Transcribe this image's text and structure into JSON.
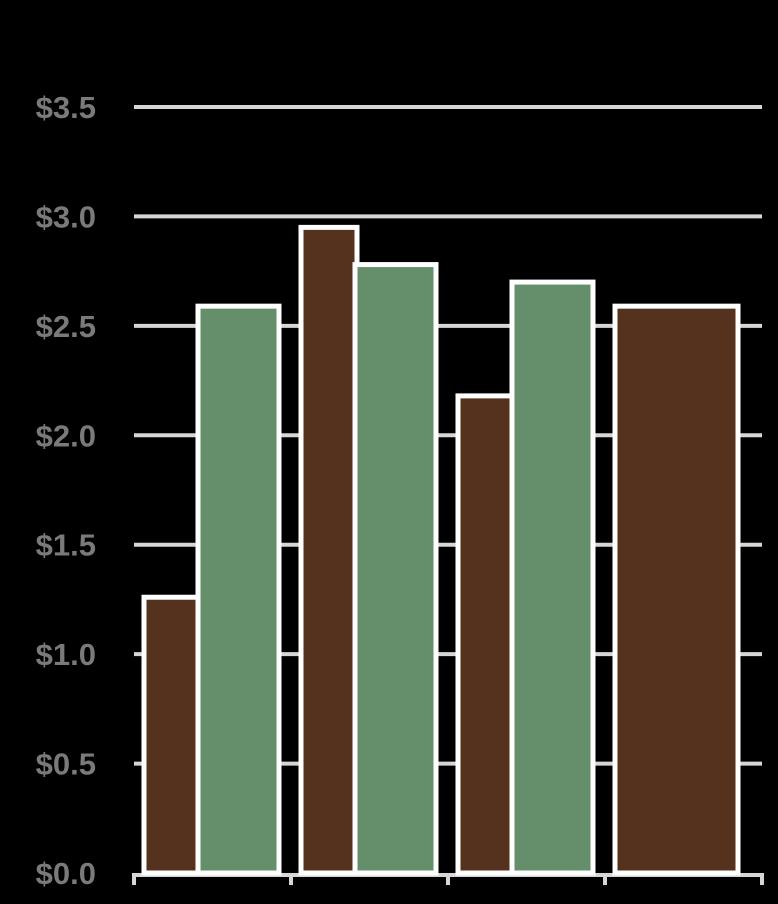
{
  "chart_data": {
    "type": "bar",
    "title": "",
    "xlabel": "",
    "ylabel": "",
    "ylim": [
      0,
      3.5
    ],
    "yticks": [
      "$0.0",
      "$0.5",
      "$1.0",
      "$1.5",
      "$2.0",
      "$2.5",
      "$3.0",
      "$3.5"
    ],
    "ytick_values": [
      0,
      0.5,
      1.0,
      1.5,
      2.0,
      2.5,
      3.0,
      3.5
    ],
    "categories": [
      "",
      "",
      "",
      ""
    ],
    "grid": true,
    "series": [
      {
        "values": [
          1.26,
          2.95,
          2.18,
          2.59
        ],
        "color": "#54321d"
      },
      {
        "values": [
          2.59,
          2.78,
          2.7,
          null
        ],
        "color": "#648f6a"
      }
    ],
    "colors": {
      "background": "#000000",
      "grid": "#d6d6d6",
      "tick_text": "#7a7a7a",
      "bar_stroke": "#ffffff"
    }
  }
}
